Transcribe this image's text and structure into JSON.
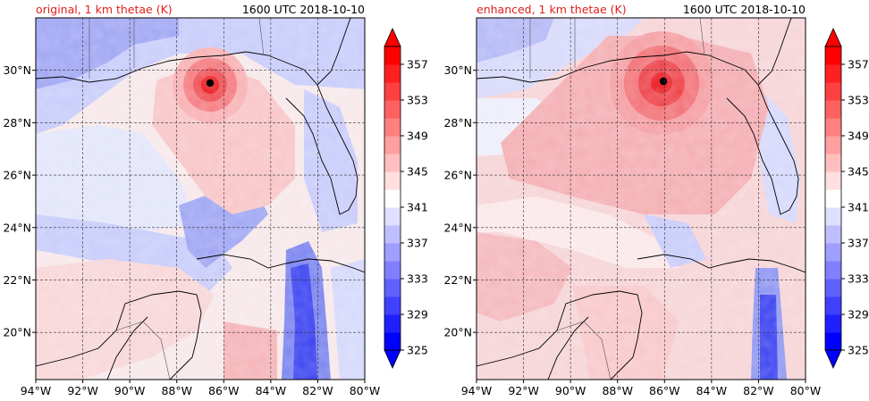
{
  "chart_data": [
    {
      "type": "heatmap",
      "title_left": "original, 1 km thetae (K)",
      "title_right": "1600 UTC 2018-10-10",
      "x_ticks": [
        "94°W",
        "92°W",
        "90°W",
        "88°W",
        "86°W",
        "84°W",
        "82°W",
        "80°W"
      ],
      "y_ticks": [
        "20°N",
        "22°N",
        "24°N",
        "26°N",
        "28°N",
        "30°N"
      ],
      "lon_range": [
        -94,
        -80
      ],
      "lat_range": [
        18.2,
        32
      ],
      "grid": true,
      "storm_center": {
        "lon": -86.5,
        "lat": 29.5
      },
      "colorbar": {
        "min": 325,
        "max": 359,
        "labels": [
          "325",
          "329",
          "333",
          "337",
          "341",
          "345",
          "349",
          "353",
          "357"
        ],
        "extend": "both"
      },
      "title_color": "#e0201c"
    },
    {
      "type": "heatmap",
      "title_left": "enhanced, 1 km thetae (K)",
      "title_right": "1600 UTC 2018-10-10",
      "x_ticks": [
        "94°W",
        "92°W",
        "90°W",
        "88°W",
        "86°W",
        "84°W",
        "82°W",
        "80°W"
      ],
      "y_ticks": [
        "20°N",
        "22°N",
        "24°N",
        "26°N",
        "28°N",
        "30°N"
      ],
      "lon_range": [
        -94,
        -80
      ],
      "lat_range": [
        18.2,
        32
      ],
      "grid": true,
      "storm_center": {
        "lon": -86.0,
        "lat": 29.6
      },
      "colorbar": {
        "min": 325,
        "max": 359,
        "labels": [
          "325",
          "329",
          "333",
          "337",
          "341",
          "345",
          "349",
          "353",
          "357"
        ],
        "extend": "both"
      },
      "title_color": "#e0201c"
    }
  ],
  "colors": {
    "cold": "#0000ff",
    "neutral": "#ffffff",
    "warm": "#ff0000",
    "land_outline": "#000000"
  }
}
